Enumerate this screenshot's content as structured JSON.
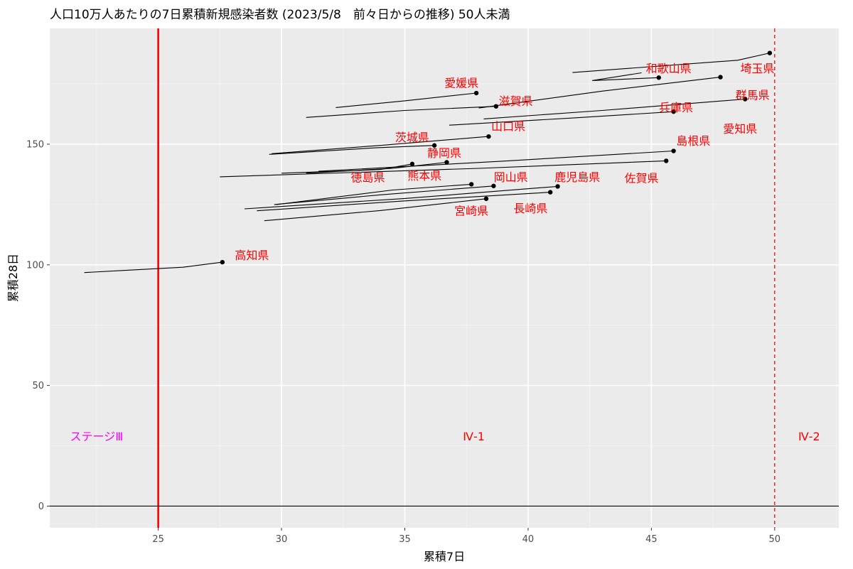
{
  "chart_data": {
    "type": "line",
    "title": "人口10万人あたりの7日累積新規感染者数 (2023/5/8　前々日からの推移) 50人未満",
    "xlabel": "累積7日",
    "ylabel": "累積28日",
    "xlim": [
      20.6,
      52.6
    ],
    "ylim": [
      -9,
      198
    ],
    "xticks": [
      25,
      30,
      35,
      40,
      45,
      50
    ],
    "yticks": [
      0,
      50,
      100,
      150
    ],
    "grid": true,
    "background": "#ebebeb",
    "colors": {
      "label": "#ff0000",
      "stage3": "#ff00ff",
      "stage4": "#ff0000",
      "threshold_line": "#ff0000",
      "trail": "#000000"
    },
    "reference_lines": [
      {
        "axis": "x",
        "value": 25,
        "style": "solid"
      },
      {
        "axis": "x",
        "value": 50,
        "style": "dashed"
      },
      {
        "axis": "y",
        "value": 0,
        "style": "solid"
      }
    ],
    "region_labels": [
      {
        "text": "ステージⅢ",
        "x": 22.5,
        "y": 29,
        "color": "#ff00ff"
      },
      {
        "text": "Ⅳ-1",
        "x": 37.8,
        "y": 29,
        "color": "#ff0000"
      },
      {
        "text": "Ⅳ-2",
        "x": 51.4,
        "y": 29,
        "color": "#ff0000"
      }
    ],
    "series": [
      {
        "name": "埼玉県",
        "points": [
          [
            41.8,
            179.7
          ],
          [
            48.5,
            184.8
          ],
          [
            49.8,
            187.8
          ]
        ],
        "label_x": 49.3,
        "label_y": 181.5
      },
      {
        "name": "和歌山県",
        "points": [
          [
            44.6,
            179.6
          ],
          [
            42.6,
            176.4
          ],
          [
            45.3,
            177.6
          ]
        ],
        "label_x": 45.7,
        "label_y": 181.5
      },
      {
        "name": "愛媛県",
        "points": [
          [
            32.2,
            165.2
          ],
          [
            35.0,
            168.0
          ],
          [
            37.9,
            171.2
          ]
        ],
        "label_x": 37.3,
        "label_y": 175.5
      },
      {
        "name": "滋賀県",
        "points": [
          [
            31.0,
            161.1
          ],
          [
            35.0,
            164.0
          ],
          [
            38.7,
            165.7
          ]
        ],
        "label_x": 39.5,
        "label_y": 168.0
      },
      {
        "name": "群馬県",
        "points": [
          [
            38.0,
            165.0
          ],
          [
            43.0,
            172.0
          ],
          [
            47.8,
            177.8
          ]
        ],
        "label_x": 49.1,
        "label_y": 170.5
      },
      {
        "name": "兵庫県",
        "points": [
          [
            38.2,
            160.5
          ],
          [
            43.0,
            164.0
          ],
          [
            48.8,
            168.7
          ]
        ],
        "label_x": 46.0,
        "label_y": 165.3
      },
      {
        "name": "愛知県",
        "points": [
          [
            36.8,
            157.9
          ],
          [
            42.0,
            161.0
          ],
          [
            45.9,
            163.5
          ]
        ],
        "label_x": 48.6,
        "label_y": 156.5
      },
      {
        "name": "山口県",
        "points": [
          [
            29.6,
            146.1
          ],
          [
            34.0,
            149.5
          ],
          [
            38.4,
            153.2
          ]
        ],
        "label_x": 39.2,
        "label_y": 157.5
      },
      {
        "name": "茨城県",
        "points": [
          [
            29.5,
            145.8
          ],
          [
            33.8,
            148.5
          ],
          [
            36.2,
            149.5
          ]
        ],
        "label_x": 35.3,
        "label_y": 153.0
      },
      {
        "name": "島根県",
        "points": [
          [
            31.5,
            138.8
          ],
          [
            39.0,
            143.0
          ],
          [
            45.9,
            147.2
          ]
        ],
        "label_x": 46.7,
        "label_y": 151.5
      },
      {
        "name": "静岡県",
        "points": [
          [
            31.0,
            138.0
          ],
          [
            34.5,
            140.0
          ],
          [
            36.7,
            142.5
          ]
        ],
        "label_x": 36.6,
        "label_y": 146.5
      },
      {
        "name": "佐賀県",
        "points": [
          [
            27.5,
            136.5
          ],
          [
            38.0,
            140.0
          ],
          [
            45.6,
            143.1
          ]
        ],
        "label_x": 44.6,
        "label_y": 136.0
      },
      {
        "name": "熊本県",
        "points": [
          [
            30.0,
            138.0
          ],
          [
            34.0,
            139.5
          ],
          [
            35.3,
            141.8
          ]
        ],
        "label_x": 35.8,
        "label_y": 137.0
      },
      {
        "name": "徳島県",
        "points": [
          [
            29.8,
            125.0
          ],
          [
            34.5,
            131.0
          ],
          [
            37.7,
            133.4
          ]
        ],
        "label_x": 33.5,
        "label_y": 136.3
      },
      {
        "name": "岡山県",
        "points": [
          [
            29.7,
            125.0
          ],
          [
            34.0,
            129.0
          ],
          [
            38.6,
            132.7
          ]
        ],
        "label_x": 39.3,
        "label_y": 136.5
      },
      {
        "name": "鹿児島県",
        "points": [
          [
            28.5,
            123.2
          ],
          [
            35.0,
            127.5
          ],
          [
            41.2,
            132.5
          ]
        ],
        "label_x": 42.0,
        "label_y": 136.5
      },
      {
        "name": "長崎県",
        "points": [
          [
            29.0,
            122.4
          ],
          [
            35.0,
            126.5
          ],
          [
            40.9,
            130.1
          ]
        ],
        "label_x": 40.1,
        "label_y": 123.5
      },
      {
        "name": "宮崎県",
        "points": [
          [
            29.3,
            118.3
          ],
          [
            34.0,
            122.5
          ],
          [
            38.3,
            127.4
          ]
        ],
        "label_x": 37.7,
        "label_y": 122.5
      },
      {
        "name": "高知県",
        "points": [
          [
            22.0,
            96.8
          ],
          [
            26.0,
            99.0
          ],
          [
            27.6,
            101.1
          ]
        ],
        "label_x": 28.8,
        "label_y": 104.0
      }
    ]
  }
}
